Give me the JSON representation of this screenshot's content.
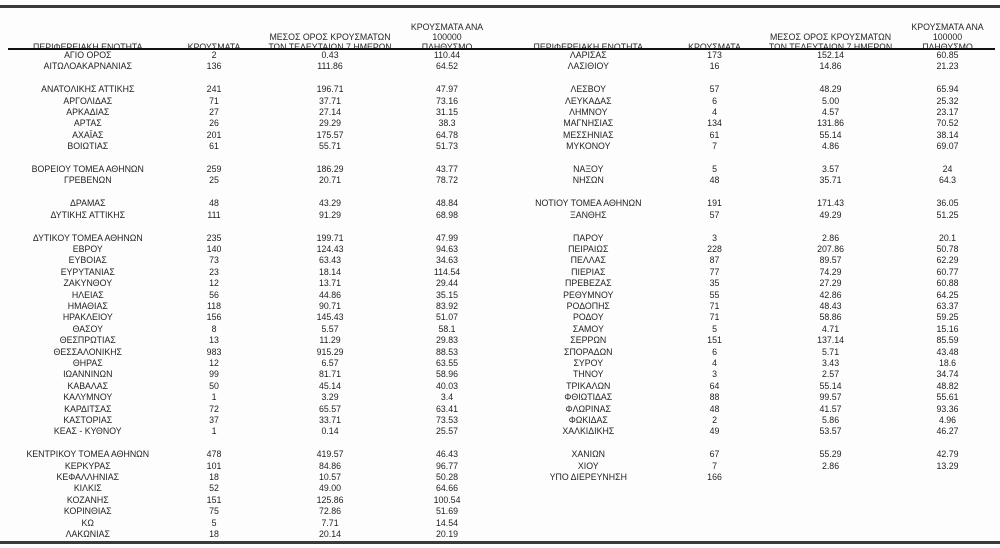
{
  "colors": {
    "background": "#fdfdfd",
    "text": "#1f1f1f",
    "thick_rule": "#3a3a3a",
    "header_rule": "#111111"
  },
  "columns": [
    "ΠΕΡΙΦΕΡΕΙΑΚΗ ΕΝΟΤΗΤΑ",
    "ΚΡΟΥΣΜΑΤΑ",
    "ΜΕΣΟΣ ΟΡΟΣ ΚΡΟΥΣΜΑΤΩΝ\nΤΩΝ ΤΕΛΕΥΤΑΙΩΝ 7 ΗΜΕΡΩΝ",
    "ΚΡΟΥΣΜΑΤΑ ΑΝΑ 100000\nΠΛΗΘΥΣΜΟ"
  ],
  "tables": [
    {
      "rows": [
        [
          "ΑΓΙΟ ΟΡΟΣ",
          "2",
          "0.43",
          "110.44"
        ],
        [
          "ΑΙΤΩΛΟΑΚΑΡΝΑΝΙΑΣ",
          "136",
          "111.86",
          "64.52"
        ],
        null,
        [
          "ΑΝΑΤΟΛΙΚΗΣ ΑΤΤΙΚΗΣ",
          "241",
          "196.71",
          "47.97"
        ],
        [
          "ΑΡΓΟΛΙΔΑΣ",
          "71",
          "37.71",
          "73.16"
        ],
        [
          "ΑΡΚΑΔΙΑΣ",
          "27",
          "27.14",
          "31.15"
        ],
        [
          "ΑΡΤΑΣ",
          "26",
          "29.29",
          "38.3"
        ],
        [
          "ΑΧΑΪΑΣ",
          "201",
          "175.57",
          "64.78"
        ],
        [
          "ΒΟΙΩΤΙΑΣ",
          "61",
          "55.71",
          "51.73"
        ],
        null,
        [
          "ΒΟΡΕΙΟΥ ΤΟΜΕΑ ΑΘΗΝΩΝ",
          "259",
          "186.29",
          "43.77"
        ],
        [
          "ΓΡΕΒΕΝΩΝ",
          "25",
          "20.71",
          "78.72"
        ],
        null,
        [
          "ΔΡΑΜΑΣ",
          "48",
          "43.29",
          "48.84"
        ],
        [
          "ΔΥΤΙΚΗΣ ΑΤΤΙΚΗΣ",
          "111",
          "91.29",
          "68.98"
        ],
        null,
        [
          "ΔΥΤΙΚΟΥ ΤΟΜΕΑ ΑΘΗΝΩΝ",
          "235",
          "199.71",
          "47.99"
        ],
        [
          "ΕΒΡΟΥ",
          "140",
          "124.43",
          "94.63"
        ],
        [
          "ΕΥΒΟΙΑΣ",
          "73",
          "63.43",
          "34.63"
        ],
        [
          "ΕΥΡΥΤΑΝΙΑΣ",
          "23",
          "18.14",
          "114.54"
        ],
        [
          "ΖΑΚΥΝΘΟΥ",
          "12",
          "13.71",
          "29.44"
        ],
        [
          "ΗΛΕΙΑΣ",
          "56",
          "44.86",
          "35.15"
        ],
        [
          "ΗΜΑΘΙΑΣ",
          "118",
          "90.71",
          "83.92"
        ],
        [
          "ΗΡΑΚΛΕΙΟΥ",
          "156",
          "145.43",
          "51.07"
        ],
        [
          "ΘΑΣΟΥ",
          "8",
          "5.57",
          "58.1"
        ],
        [
          "ΘΕΣΠΡΩΤΙΑΣ",
          "13",
          "11.29",
          "29.83"
        ],
        [
          "ΘΕΣΣΑΛΟΝΙΚΗΣ",
          "983",
          "915.29",
          "88.53"
        ],
        [
          "ΘΗΡΑΣ",
          "12",
          "6.57",
          "63.55"
        ],
        [
          "ΙΩΑΝΝΙΝΩΝ",
          "99",
          "81.71",
          "58.96"
        ],
        [
          "ΚΑΒΑΛΑΣ",
          "50",
          "45.14",
          "40.03"
        ],
        [
          "ΚΑΛΥΜΝΟΥ",
          "1",
          "3.29",
          "3.4"
        ],
        [
          "ΚΑΡΔΙΤΣΑΣ",
          "72",
          "65.57",
          "63.41"
        ],
        [
          "ΚΑΣΤΟΡΙΑΣ",
          "37",
          "33.71",
          "73.53"
        ],
        [
          "ΚΕΑΣ - ΚΥΘΝΟΥ",
          "1",
          "0.14",
          "25.57"
        ],
        null,
        [
          "ΚΕΝΤΡΙΚΟΥ ΤΟΜΕΑ ΑΘΗΝΩΝ",
          "478",
          "419.57",
          "46.43"
        ],
        [
          "ΚΕΡΚΥΡΑΣ",
          "101",
          "84.86",
          "96.77"
        ],
        [
          "ΚΕΦΑΛΛΗΝΙΑΣ",
          "18",
          "10.57",
          "50.28"
        ],
        [
          "ΚΙΛΚΙΣ",
          "52",
          "49.00",
          "64.66"
        ],
        [
          "ΚΟΖΑΝΗΣ",
          "151",
          "125.86",
          "100.54"
        ],
        [
          "ΚΟΡΙΝΘΙΑΣ",
          "75",
          "72.86",
          "51.69"
        ],
        [
          "ΚΩ",
          "5",
          "7.71",
          "14.54"
        ],
        [
          "ΛΑΚΩΝΙΑΣ",
          "18",
          "20.14",
          "20.19"
        ]
      ]
    },
    {
      "rows": [
        [
          "ΛΑΡΙΣΑΣ",
          "173",
          "152.14",
          "60.85"
        ],
        [
          "ΛΑΣΙΘΙΟΥ",
          "16",
          "14.86",
          "21.23"
        ],
        null,
        [
          "ΛΕΣΒΟΥ",
          "57",
          "48.29",
          "65.94"
        ],
        [
          "ΛΕΥΚΑΔΑΣ",
          "6",
          "5.00",
          "25.32"
        ],
        [
          "ΛΗΜΝΟΥ",
          "4",
          "4.57",
          "23.17"
        ],
        [
          "ΜΑΓΝΗΣΙΑΣ",
          "134",
          "131.86",
          "70.52"
        ],
        [
          "ΜΕΣΣΗΝΙΑΣ",
          "61",
          "55.14",
          "38.14"
        ],
        [
          "ΜΥΚΟΝΟΥ",
          "7",
          "4.86",
          "69.07"
        ],
        null,
        [
          "ΝΑΞΟΥ",
          "5",
          "3.57",
          "24"
        ],
        [
          "ΝΗΣΩΝ",
          "48",
          "35.71",
          "64.3"
        ],
        null,
        [
          "ΝΟΤΙΟΥ ΤΟΜΕΑ ΑΘΗΝΩΝ",
          "191",
          "171.43",
          "36.05"
        ],
        [
          "ΞΑΝΘΗΣ",
          "57",
          "49.29",
          "51.25"
        ],
        null,
        [
          "ΠΑΡΟΥ",
          "3",
          "2.86",
          "20.1"
        ],
        [
          "ΠΕΙΡΑΙΩΣ",
          "228",
          "207.86",
          "50.78"
        ],
        [
          "ΠΕΛΛΑΣ",
          "87",
          "89.57",
          "62.29"
        ],
        [
          "ΠΙΕΡΙΑΣ",
          "77",
          "74.29",
          "60.77"
        ],
        [
          "ΠΡΕΒΕΖΑΣ",
          "35",
          "27.29",
          "60.88"
        ],
        [
          "ΡΕΘΥΜΝΟΥ",
          "55",
          "42.86",
          "64.25"
        ],
        [
          "ΡΟΔΟΠΗΣ",
          "71",
          "48.43",
          "63.37"
        ],
        [
          "ΡΟΔΟΥ",
          "71",
          "58.86",
          "59.25"
        ],
        [
          "ΣΑΜΟΥ",
          "5",
          "4.71",
          "15.16"
        ],
        [
          "ΣΕΡΡΩΝ",
          "151",
          "137.14",
          "85.59"
        ],
        [
          "ΣΠΟΡΑΔΩΝ",
          "6",
          "5.71",
          "43.48"
        ],
        [
          "ΣΥΡΟΥ",
          "4",
          "3.43",
          "18.6"
        ],
        [
          "ΤΗΝΟΥ",
          "3",
          "2.57",
          "34.74"
        ],
        [
          "ΤΡΙΚΑΛΩΝ",
          "64",
          "55.14",
          "48.82"
        ],
        [
          "ΦΘΙΩΤΙΔΑΣ",
          "88",
          "99.57",
          "55.61"
        ],
        [
          "ΦΛΩΡΙΝΑΣ",
          "48",
          "41.57",
          "93.36"
        ],
        [
          "ΦΩΚΙΔΑΣ",
          "2",
          "5.86",
          "4.96"
        ],
        [
          "ΧΑΛΚΙΔΙΚΗΣ",
          "49",
          "53.57",
          "46.27"
        ],
        null,
        [
          "ΧΑΝΙΩΝ",
          "67",
          "55.29",
          "42.79"
        ],
        [
          "ΧΙΟΥ",
          "7",
          "2.86",
          "13.29"
        ],
        [
          "ΥΠΟ ΔΙΕΡΕΥΝΗΣΗ",
          "166",
          "",
          ""
        ]
      ]
    }
  ]
}
